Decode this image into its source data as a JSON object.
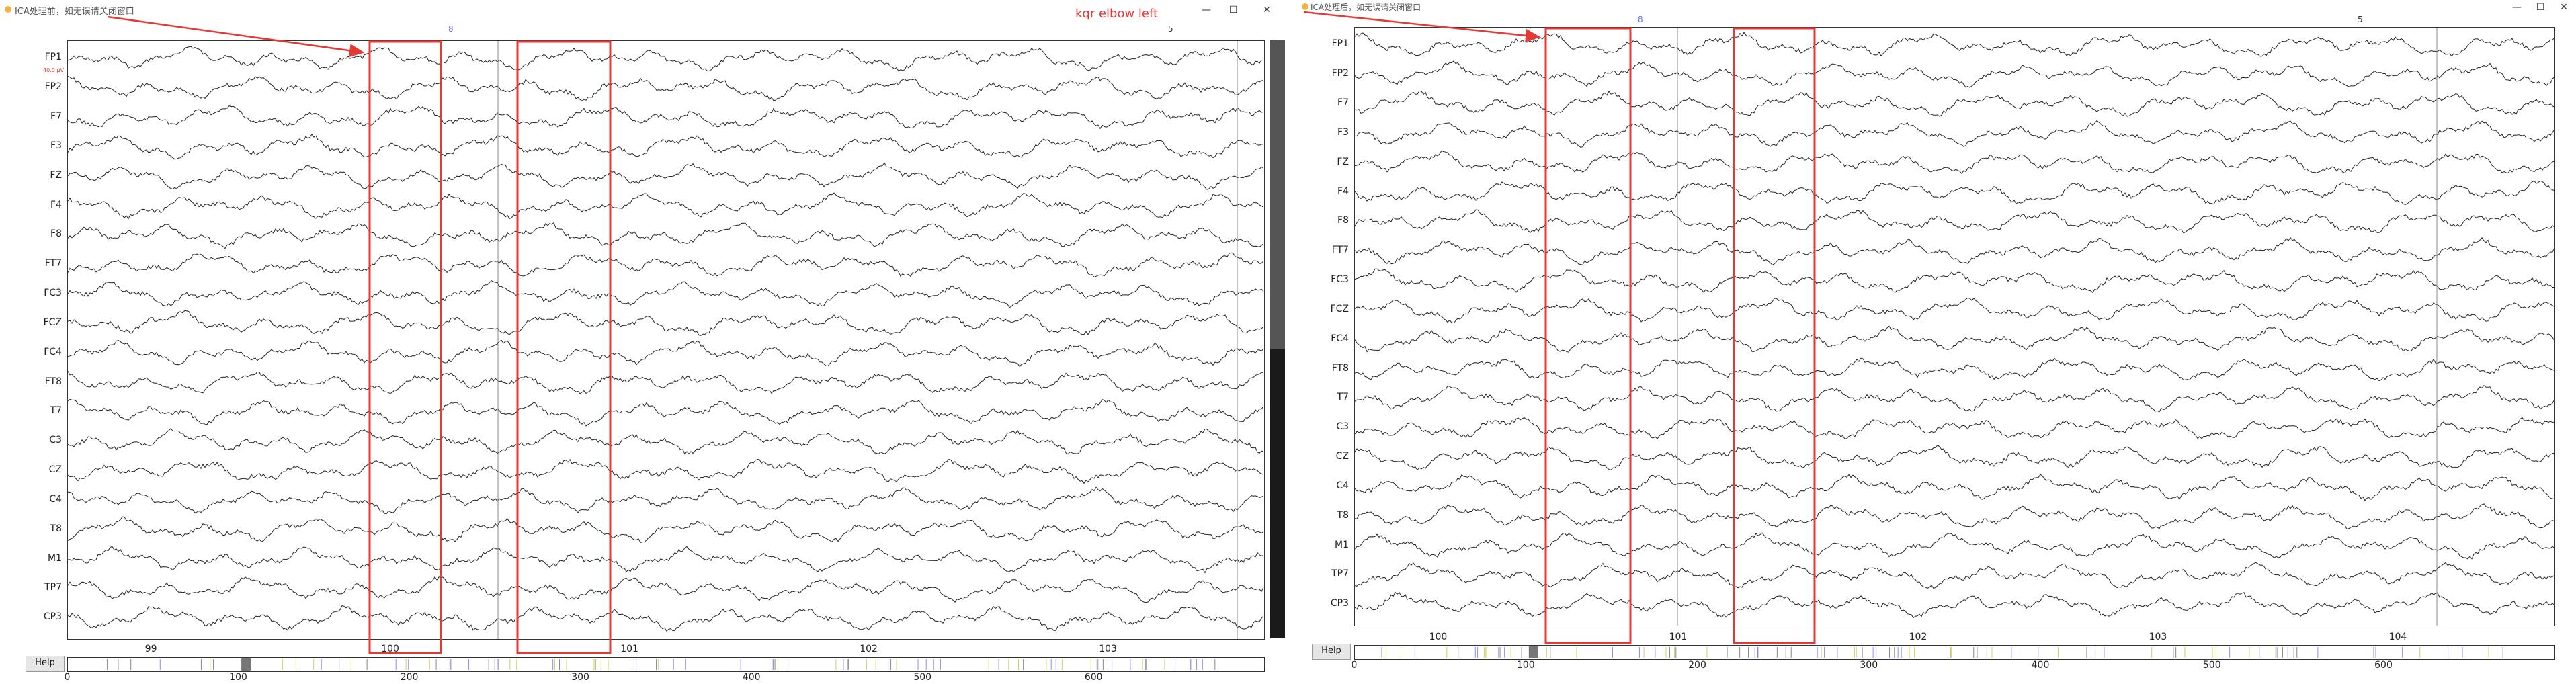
{
  "windows": [
    {
      "title": "ICA处理前，如无误请关闭窗口",
      "annotation": "kqr elbow left",
      "scale": "40.0 µV",
      "markers": [
        "8",
        "5"
      ],
      "channels": [
        "FP1",
        "FP2",
        "F7",
        "F3",
        "FZ",
        "F4",
        "F8",
        "FT7",
        "FC3",
        "FCZ",
        "FC4",
        "FT8",
        "T7",
        "C3",
        "CZ",
        "C4",
        "T8",
        "M1",
        "TP7",
        "CP3"
      ],
      "xticks": [
        "99",
        "100",
        "101",
        "102",
        "103"
      ],
      "overview_ticks": [
        "0",
        "100",
        "200",
        "300",
        "400",
        "500",
        "600"
      ],
      "help_label": "Help"
    },
    {
      "title": "ICA处理后，如无误请关闭窗口",
      "markers": [
        "8",
        "5"
      ],
      "channels": [
        "FP1",
        "FP2",
        "F7",
        "F3",
        "FZ",
        "F4",
        "F8",
        "FT7",
        "FC3",
        "FCZ",
        "FC4",
        "FT8",
        "T7",
        "C3",
        "CZ",
        "C4",
        "T8",
        "M1",
        "TP7",
        "CP3"
      ],
      "xticks": [
        "100",
        "101",
        "102",
        "103",
        "104"
      ],
      "overview_ticks": [
        "0",
        "100",
        "200",
        "300",
        "400",
        "500",
        "600"
      ],
      "help_label": "Help"
    }
  ],
  "colors": {
    "annotation_red": "#e53935",
    "trace": "#222222",
    "marker": "#6a6aff"
  }
}
